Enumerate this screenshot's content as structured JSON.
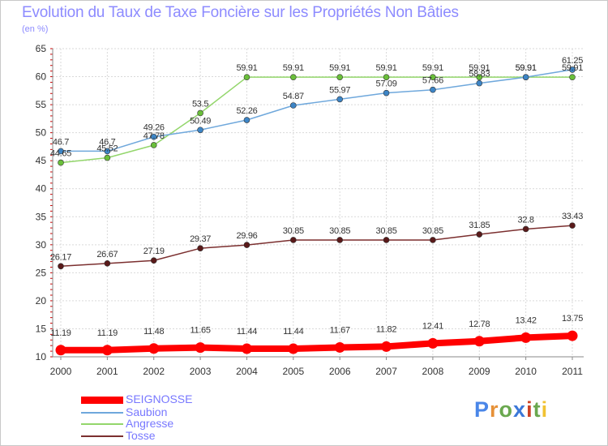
{
  "header": {
    "title": "Evolution du Taux de Taxe Foncière sur les Propriétés Non Bâties",
    "unit": "(en %)"
  },
  "chart_data": {
    "type": "line",
    "title": "Evolution du Taux de Taxe Foncière sur les Propriétés Non Bâties",
    "ylabel": "(en %)",
    "xlabel": "",
    "ylim": [
      10,
      65
    ],
    "yticks": [
      10,
      15,
      20,
      25,
      30,
      35,
      40,
      45,
      50,
      55,
      60,
      65
    ],
    "grid": true,
    "legend_position": "bottom-left",
    "x": [
      "2000",
      "2001",
      "2002",
      "2003",
      "2004",
      "2005",
      "2006",
      "2007",
      "2008",
      "2009",
      "2010",
      "2011"
    ],
    "series": [
      {
        "name": "SEIGNOSSE",
        "color": "#ff0000",
        "marker_color": "#ff0000",
        "values": [
          11.19,
          11.19,
          11.48,
          11.65,
          11.44,
          11.44,
          11.67,
          11.82,
          12.41,
          12.78,
          13.42,
          13.75
        ],
        "labels": [
          "11.19",
          "11.19",
          "11.48",
          "11.65",
          "11.44",
          "11.44",
          "11.67",
          "11.82",
          "12.41",
          "12.78",
          "13.42",
          "13.75"
        ]
      },
      {
        "name": "Saubion",
        "color": "#6fa8dc",
        "marker_color": "#3d85c6",
        "values": [
          46.7,
          46.7,
          49.26,
          50.49,
          52.26,
          54.87,
          55.97,
          57.09,
          57.66,
          58.83,
          59.91,
          61.25
        ],
        "labels": [
          "46.7",
          "46.7",
          "49.26",
          "50.49",
          "52.26",
          "54.87",
          "55.97",
          "57.09",
          "57.66",
          "58.83",
          "59.91",
          "61.25"
        ]
      },
      {
        "name": "Angresse",
        "color": "#93d66b",
        "marker_color": "#6abf3a",
        "values": [
          44.65,
          45.52,
          47.78,
          53.5,
          59.91,
          59.91,
          59.91,
          59.91,
          59.91,
          59.91,
          59.91,
          59.91
        ],
        "labels": [
          "44.65",
          "45.52",
          "47.78",
          "53.5",
          "59.91",
          "59.91",
          "59.91",
          "59.91",
          "59.91",
          "59.91",
          "59.91",
          "59.91"
        ]
      },
      {
        "name": "Tosse",
        "color": "#7b2f2f",
        "marker_color": "#5a1a1a",
        "values": [
          26.17,
          26.67,
          27.19,
          29.37,
          29.96,
          30.85,
          30.85,
          30.85,
          30.85,
          31.85,
          32.8,
          33.43
        ],
        "labels": [
          "26.17",
          "26.67",
          "27.19",
          "29.37",
          "29.96",
          "30.85",
          "30.85",
          "30.85",
          "30.85",
          "31.85",
          "32.8",
          "33.43"
        ]
      }
    ]
  },
  "logo": {
    "letters": [
      "P",
      "r",
      "o",
      "x",
      "i",
      "t",
      "i"
    ],
    "colors": [
      "#4a86e8",
      "#e69138",
      "#6aa84f",
      "#3c78d8",
      "#cc4125",
      "#6aa84f",
      "#f1c232"
    ]
  }
}
